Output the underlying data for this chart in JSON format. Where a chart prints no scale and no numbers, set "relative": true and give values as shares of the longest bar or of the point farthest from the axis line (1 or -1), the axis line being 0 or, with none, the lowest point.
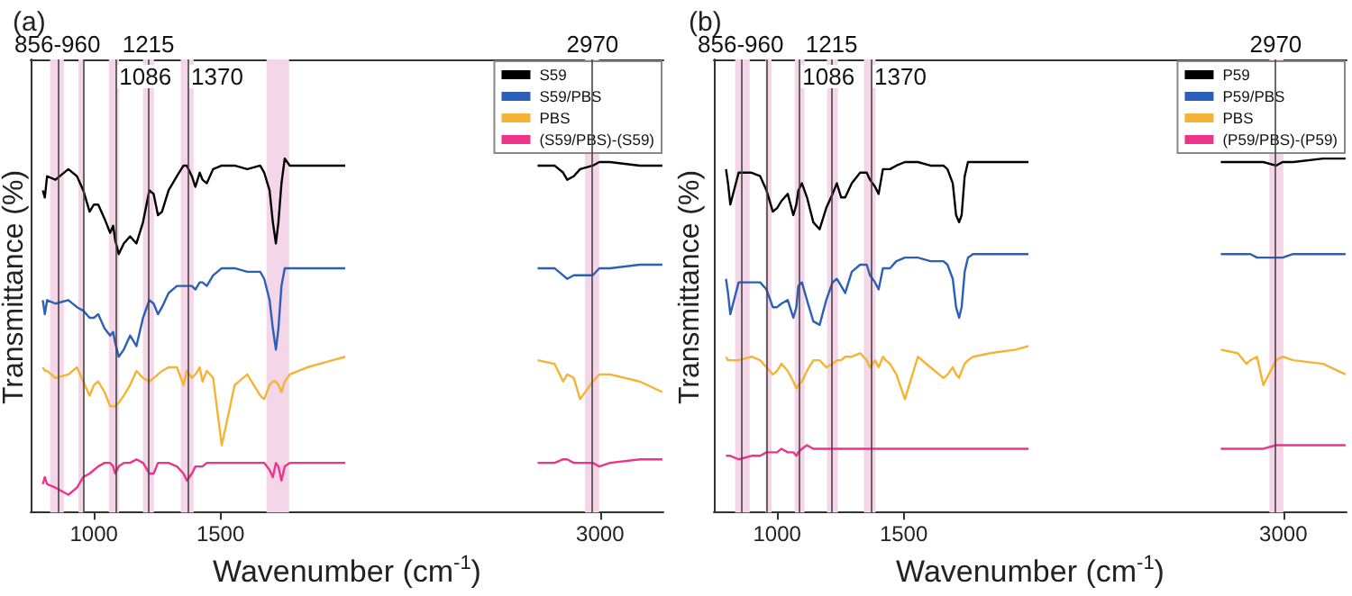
{
  "chart_data": [
    {
      "type": "line",
      "title": "(a)",
      "xlabel": "Wavenumber (cm$^{-1}$)",
      "ylabel": "Transmittance (%)",
      "relative": true,
      "marker": "none",
      "legend": "top right",
      "xlim": [
        750,
        3250
      ],
      "xticks": [
        1000,
        1500,
        3000
      ],
      "x": [
        798,
        806,
        815,
        848,
        899,
        933,
        958,
        983,
        1000,
        1017,
        1042,
        1064,
        1076,
        1084,
        1098,
        1118,
        1143,
        1168,
        1194,
        1219,
        1236,
        1253,
        1269,
        1295,
        1328,
        1354,
        1367,
        1387,
        1401,
        1418,
        1429,
        1446,
        1471,
        1505,
        1556,
        1606,
        1657,
        1673,
        1694,
        1707,
        1719,
        1729,
        1741,
        1754,
        1774,
        1842,
        1943,
        1993,
        2000,
        2750,
        2753,
        2820,
        2854,
        2870,
        2896,
        2921,
        2971,
        2997,
        3039,
        3157,
        3246
      ],
      "series": [
        {
          "name": "S59",
          "color": "#000000",
          "values": [
            0.91,
            0.89,
            0.95,
            0.94,
            0.97,
            0.95,
            0.91,
            0.85,
            0.87,
            0.87,
            0.83,
            0.79,
            0.81,
            0.77,
            0.73,
            0.76,
            0.78,
            0.76,
            0.82,
            0.91,
            0.9,
            0.84,
            0.85,
            0.91,
            0.95,
            0.98,
            0.98,
            0.95,
            0.92,
            0.96,
            0.94,
            0.93,
            0.97,
            0.98,
            0.98,
            0.97,
            0.98,
            0.96,
            0.91,
            0.82,
            0.76,
            0.82,
            0.93,
            1.0,
            0.98,
            0.98,
            0.98,
            0.98,
            null,
            null,
            0.98,
            0.98,
            0.96,
            0.94,
            0.95,
            0.97,
            0.98,
            0.99,
            0.99,
            0.98,
            0.98
          ]
        },
        {
          "name": "S59/PBS",
          "color": "#2c5fb8",
          "values": [
            0.6,
            0.56,
            0.6,
            0.59,
            0.6,
            0.58,
            0.57,
            0.55,
            0.55,
            0.56,
            0.52,
            0.5,
            0.51,
            0.48,
            0.44,
            0.46,
            0.5,
            0.47,
            0.55,
            0.6,
            0.59,
            0.56,
            0.58,
            0.62,
            0.64,
            0.64,
            0.64,
            0.64,
            0.63,
            0.65,
            0.65,
            0.64,
            0.67,
            0.69,
            0.69,
            0.68,
            0.68,
            0.66,
            0.6,
            0.52,
            0.46,
            0.52,
            0.64,
            0.69,
            0.69,
            0.69,
            0.69,
            0.69,
            null,
            null,
            0.69,
            0.69,
            0.67,
            0.66,
            0.67,
            0.67,
            0.67,
            0.69,
            0.69,
            0.7,
            0.7
          ]
        },
        {
          "name": "PBS",
          "color": "#f5b335",
          "values": [
            0.41,
            0.4,
            0.4,
            0.38,
            0.39,
            0.41,
            0.37,
            0.33,
            0.36,
            0.37,
            0.34,
            0.3,
            0.3,
            0.3,
            0.31,
            0.33,
            0.36,
            0.4,
            0.38,
            0.37,
            0.38,
            0.39,
            0.4,
            0.41,
            0.41,
            0.36,
            0.4,
            0.38,
            0.39,
            0.41,
            0.37,
            0.4,
            0.38,
            0.19,
            0.36,
            0.39,
            0.33,
            0.32,
            0.36,
            0.37,
            0.37,
            0.36,
            0.34,
            0.37,
            0.39,
            0.41,
            0.43,
            0.44,
            null,
            null,
            0.43,
            0.42,
            0.37,
            0.39,
            0.38,
            0.32,
            0.37,
            0.39,
            0.39,
            0.37,
            0.34
          ]
        },
        {
          "name": "(S59/PBS)-(S59)",
          "color": "#f0338a",
          "values": [
            0.08,
            0.1,
            0.08,
            0.07,
            0.05,
            0.07,
            0.1,
            0.11,
            0.12,
            0.13,
            0.14,
            0.14,
            0.13,
            0.11,
            0.13,
            0.14,
            0.14,
            0.15,
            0.14,
            0.11,
            0.11,
            0.14,
            0.14,
            0.14,
            0.13,
            0.11,
            0.09,
            0.11,
            0.13,
            0.13,
            0.13,
            0.14,
            0.14,
            0.14,
            0.14,
            0.14,
            0.14,
            0.14,
            0.12,
            0.1,
            0.14,
            0.13,
            0.09,
            0.13,
            0.14,
            0.14,
            0.14,
            0.14,
            null,
            null,
            0.14,
            0.14,
            0.15,
            0.15,
            0.14,
            0.14,
            0.14,
            0.13,
            0.14,
            0.15,
            0.15
          ]
        }
      ],
      "ref_lines": [
        {
          "axis": "x",
          "value": 856,
          "label": "856-960"
        },
        {
          "axis": "x",
          "value": 960,
          "label": null
        },
        {
          "axis": "x",
          "value": 1086,
          "label": "1086"
        },
        {
          "axis": "x",
          "value": 1215,
          "label": "1215"
        },
        {
          "axis": "x",
          "value": 1370,
          "label": "1370"
        },
        {
          "axis": "x",
          "value": 2970,
          "label": "2970"
        }
      ],
      "bands": [
        {
          "axis": "x",
          "from": 827,
          "to": 881,
          "color": "#f5d5e8"
        },
        {
          "axis": "x",
          "from": 939,
          "to": 961,
          "color": "#f5d5e8"
        },
        {
          "axis": "x",
          "from": 1059,
          "to": 1099,
          "color": "#f5d5e8"
        },
        {
          "axis": "x",
          "from": 1194,
          "to": 1237,
          "color": "#f5d5e8"
        },
        {
          "axis": "x",
          "from": 1343,
          "to": 1394,
          "color": "#f5d5e8"
        },
        {
          "axis": "x",
          "from": 1682,
          "to": 1771,
          "color": "#f5d5e8"
        },
        {
          "axis": "x",
          "from": 2940,
          "to": 2996,
          "color": "#f5d5e8"
        }
      ]
    },
    {
      "type": "line",
      "title": "(b)",
      "xlabel": "Wavenumber (cm$^{-1}$)",
      "ylabel": "Transmittance (%)",
      "relative": true,
      "marker": "none",
      "legend": "top right",
      "xlim": [
        750,
        3250
      ],
      "xticks": [
        1000,
        1500,
        3000
      ],
      "x": [
        798,
        806,
        815,
        848,
        899,
        933,
        958,
        983,
        1000,
        1017,
        1042,
        1064,
        1076,
        1084,
        1098,
        1118,
        1143,
        1168,
        1194,
        1219,
        1236,
        1253,
        1269,
        1295,
        1328,
        1354,
        1367,
        1387,
        1401,
        1418,
        1429,
        1446,
        1471,
        1505,
        1556,
        1606,
        1657,
        1673,
        1694,
        1707,
        1719,
        1729,
        1741,
        1754,
        1774,
        1842,
        1943,
        1993,
        2000,
        2750,
        2753,
        2820,
        2854,
        2870,
        2896,
        2921,
        2971,
        2997,
        3039,
        3157,
        3246
      ],
      "series": [
        {
          "name": "P59",
          "color": "#000000",
          "values": [
            0.97,
            0.93,
            0.87,
            0.96,
            0.96,
            0.95,
            0.91,
            0.85,
            0.86,
            0.88,
            0.9,
            0.84,
            0.87,
            0.91,
            0.93,
            0.89,
            0.82,
            0.8,
            0.86,
            0.9,
            0.93,
            0.89,
            0.89,
            0.93,
            0.96,
            0.96,
            0.94,
            0.92,
            0.9,
            0.97,
            0.97,
            0.97,
            0.98,
            0.99,
            0.99,
            0.98,
            0.98,
            0.97,
            0.93,
            0.84,
            0.82,
            0.84,
            0.95,
            0.99,
            0.99,
            0.99,
            0.99,
            0.99,
            null,
            null,
            0.99,
            0.99,
            0.99,
            0.99,
            0.99,
            0.99,
            0.98,
            0.99,
            0.99,
            1.0,
            1.0
          ]
        },
        {
          "name": "P59/PBS",
          "color": "#2c5fb8",
          "values": [
            0.66,
            0.62,
            0.56,
            0.65,
            0.65,
            0.65,
            0.63,
            0.58,
            0.58,
            0.59,
            0.6,
            0.55,
            0.58,
            0.64,
            0.65,
            0.6,
            0.54,
            0.53,
            0.6,
            0.65,
            0.66,
            0.64,
            0.62,
            0.68,
            0.7,
            0.7,
            0.67,
            0.65,
            0.63,
            0.69,
            0.69,
            0.69,
            0.71,
            0.72,
            0.72,
            0.71,
            0.71,
            0.7,
            0.66,
            0.58,
            0.55,
            0.58,
            0.68,
            0.72,
            0.73,
            0.73,
            0.73,
            0.73,
            null,
            null,
            0.73,
            0.73,
            0.73,
            0.73,
            0.72,
            0.72,
            0.72,
            0.72,
            0.73,
            0.73,
            0.73
          ]
        },
        {
          "name": "PBS",
          "color": "#f5b335",
          "values": [
            0.44,
            0.43,
            0.43,
            0.43,
            0.44,
            0.43,
            0.41,
            0.39,
            0.4,
            0.42,
            0.4,
            0.37,
            0.35,
            0.36,
            0.37,
            0.4,
            0.43,
            0.43,
            0.41,
            0.42,
            0.43,
            0.43,
            0.44,
            0.44,
            0.45,
            0.43,
            0.41,
            0.43,
            0.41,
            0.44,
            0.43,
            0.42,
            0.39,
            0.32,
            0.44,
            0.41,
            0.38,
            0.39,
            0.41,
            0.39,
            0.38,
            0.4,
            0.42,
            0.43,
            0.44,
            0.45,
            0.46,
            0.47,
            null,
            null,
            0.46,
            0.45,
            0.42,
            0.43,
            0.44,
            0.36,
            0.43,
            0.44,
            0.43,
            0.42,
            0.39
          ]
        },
        {
          "name": "(P59/PBS)-(P59)",
          "color": "#f0338a",
          "values": [
            0.16,
            0.16,
            0.16,
            0.15,
            0.16,
            0.16,
            0.17,
            0.17,
            0.17,
            0.18,
            0.17,
            0.17,
            0.16,
            0.17,
            0.18,
            0.19,
            0.18,
            0.18,
            0.18,
            0.18,
            0.18,
            0.18,
            0.18,
            0.18,
            0.18,
            0.18,
            0.18,
            0.18,
            0.18,
            0.18,
            0.18,
            0.18,
            0.18,
            0.18,
            0.18,
            0.18,
            0.18,
            0.18,
            0.18,
            0.18,
            0.18,
            0.18,
            0.18,
            0.18,
            0.18,
            0.18,
            0.18,
            0.18,
            null,
            null,
            0.18,
            0.18,
            0.18,
            0.18,
            0.18,
            0.18,
            0.19,
            0.19,
            0.19,
            0.19,
            0.19
          ]
        }
      ],
      "ref_lines": [
        {
          "axis": "x",
          "value": 856,
          "label": "856-960"
        },
        {
          "axis": "x",
          "value": 960,
          "label": null
        },
        {
          "axis": "x",
          "value": 1086,
          "label": "1086"
        },
        {
          "axis": "x",
          "value": 1215,
          "label": "1215"
        },
        {
          "axis": "x",
          "value": 1370,
          "label": "1370"
        },
        {
          "axis": "x",
          "value": 2970,
          "label": "2970"
        }
      ],
      "bands": [
        {
          "axis": "x",
          "from": 834,
          "to": 892,
          "color": "#f5d5e8"
        },
        {
          "axis": "x",
          "from": 954,
          "to": 978,
          "color": "#f5d5e8"
        },
        {
          "axis": "x",
          "from": 1070,
          "to": 1108,
          "color": "#f5d5e8"
        },
        {
          "axis": "x",
          "from": 1197,
          "to": 1240,
          "color": "#f5d5e8"
        },
        {
          "axis": "x",
          "from": 1343,
          "to": 1389,
          "color": "#f5d5e8"
        },
        {
          "axis": "x",
          "from": 2945,
          "to": 3000,
          "color": "#f5d5e8"
        }
      ]
    }
  ]
}
